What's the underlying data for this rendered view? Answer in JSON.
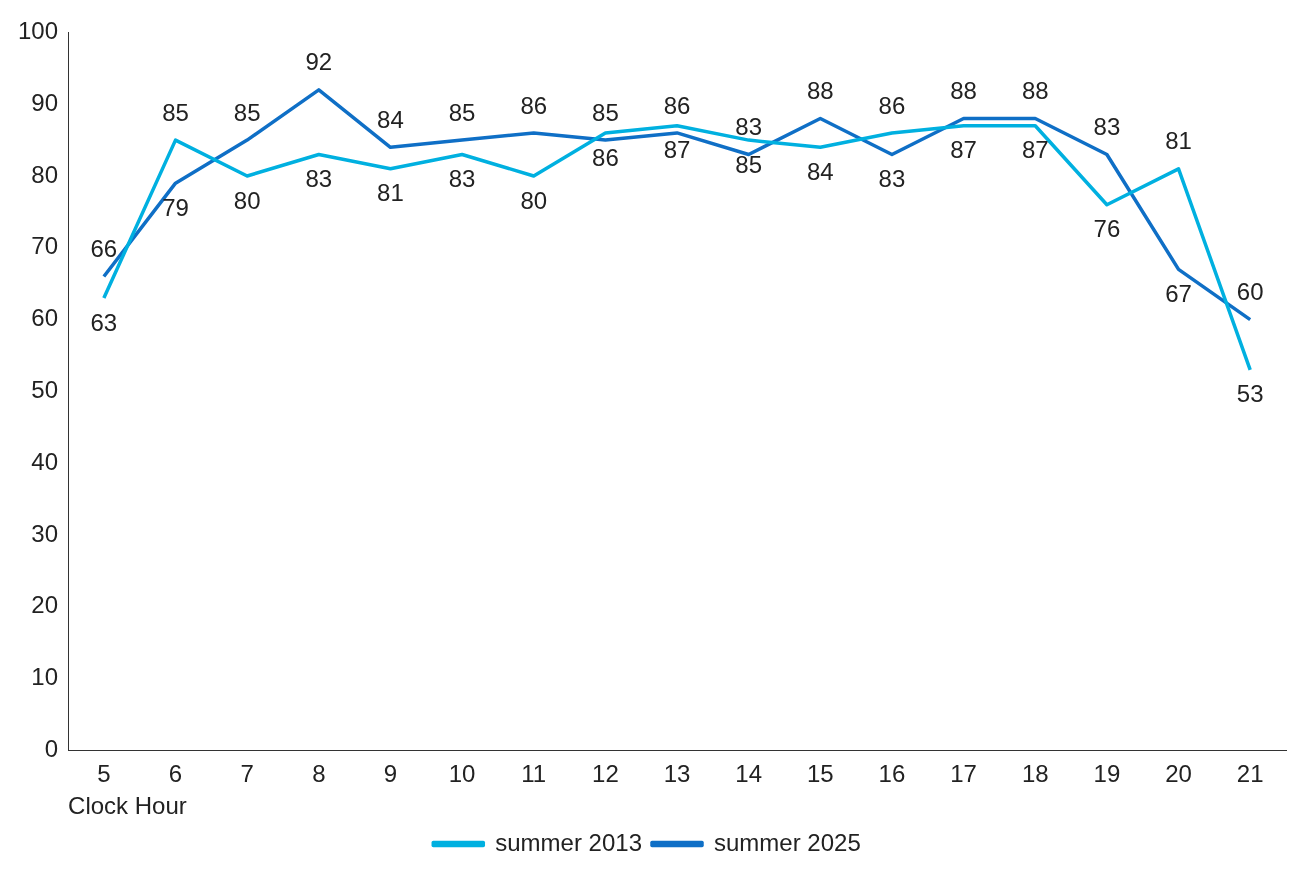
{
  "chart_data": {
    "type": "line",
    "xlabel": "Clock Hour",
    "categories": [
      "5",
      "6",
      "7",
      "8",
      "9",
      "10",
      "11",
      "12",
      "13",
      "14",
      "15",
      "16",
      "17",
      "18",
      "19",
      "20",
      "21"
    ],
    "series": [
      {
        "name": "summer 2013",
        "color": "#00b0e0",
        "values": [
          63,
          85,
          80,
          83,
          81,
          83,
          80,
          86,
          87,
          85,
          84,
          86,
          87,
          87,
          76,
          81,
          53
        ]
      },
      {
        "name": "summer 2025",
        "color": "#0f6fc6",
        "values": [
          66,
          79,
          85,
          92,
          84,
          85,
          86,
          85,
          86,
          83,
          88,
          83,
          88,
          88,
          83,
          67,
          60
        ]
      }
    ],
    "ylim": [
      0,
      100
    ],
    "yticks": [
      0,
      10,
      20,
      30,
      40,
      50,
      60,
      70,
      80,
      90,
      100
    ],
    "grid": false,
    "legend": "bottom",
    "data_labels": true,
    "marker": "none",
    "line_style": "solid"
  }
}
